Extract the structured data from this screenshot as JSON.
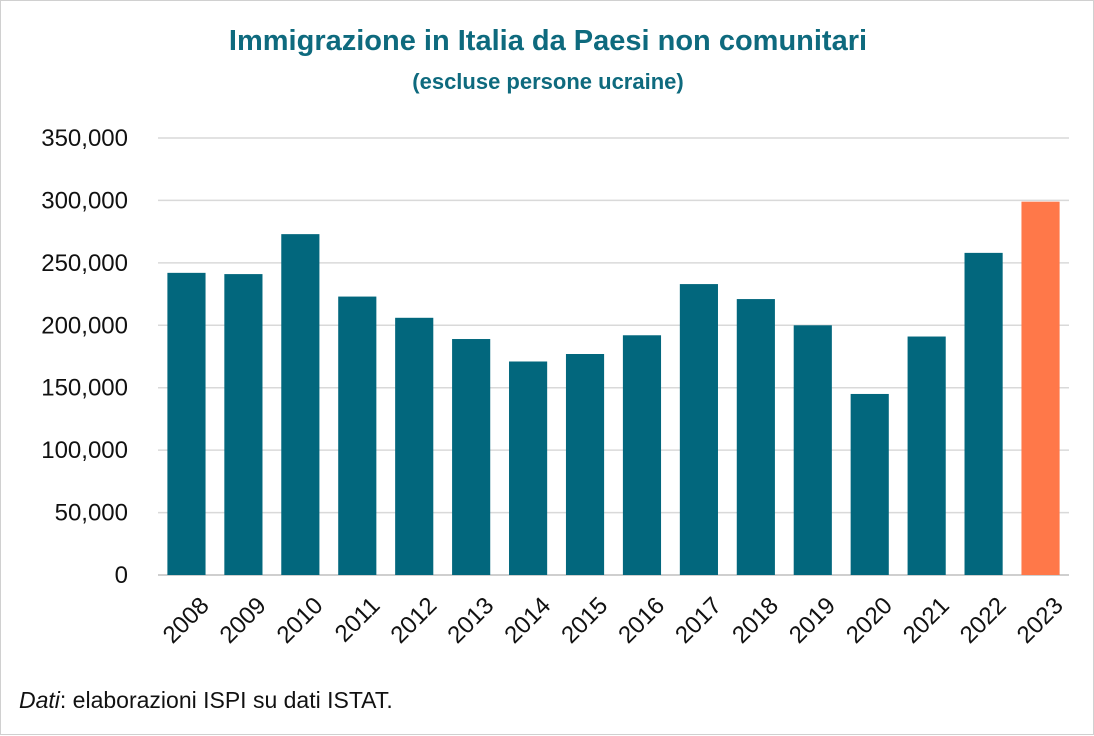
{
  "title": "Immigrazione in Italia da Paesi non comunitari",
  "subtitle": "(escluse persone ucraine)",
  "source": {
    "label": "Dati",
    "text": ": elaborazioni ISPI su dati ISTAT."
  },
  "colors": {
    "bar": "#02677d",
    "highlight": "#ff7849",
    "grid": "#d9d9d9",
    "title": "#0e6a7e"
  },
  "chart_data": {
    "type": "bar",
    "categories": [
      "2008",
      "2009",
      "2010",
      "2011",
      "2012",
      "2013",
      "2014",
      "2015",
      "2016",
      "2017",
      "2018",
      "2019",
      "2020",
      "2021",
      "2022",
      "2023"
    ],
    "values": [
      242000,
      241000,
      273000,
      223000,
      206000,
      189000,
      171000,
      177000,
      192000,
      233000,
      221000,
      200000,
      145000,
      191000,
      258000,
      299000
    ],
    "highlight_category": "2023",
    "ylim": [
      0,
      350000
    ],
    "yticks": [
      0,
      50000,
      100000,
      150000,
      200000,
      250000,
      300000,
      350000
    ],
    "ytick_labels": [
      "0",
      "50,000",
      "100,000",
      "150,000",
      "200,000",
      "250,000",
      "300,000",
      "350,000"
    ],
    "grid": true,
    "xlabel": "",
    "ylabel": ""
  }
}
